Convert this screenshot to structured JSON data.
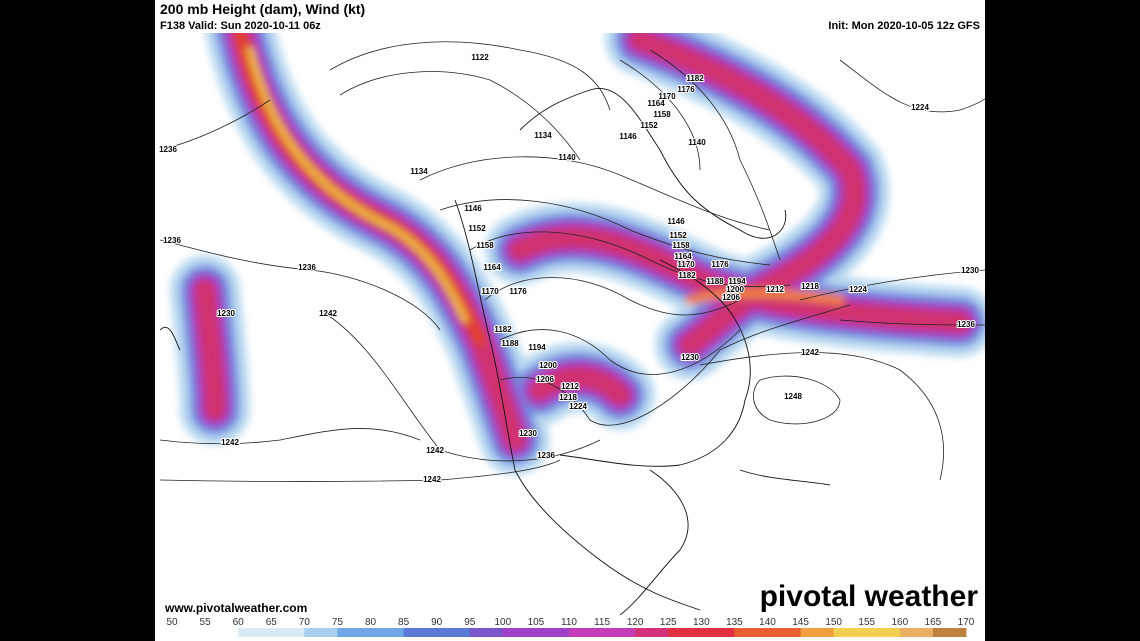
{
  "header": {
    "title": "200 mb Height (dam), Wind (kt)",
    "valid": "F138 Valid: Sun 2020-10-11 06z",
    "init": "Init: Mon 2020-10-05 12z GFS"
  },
  "contour_labels": [
    1122,
    1236,
    1236,
    1236,
    1230,
    1242,
    1242,
    1242,
    1242,
    1134,
    1140,
    1134,
    1146,
    1152,
    1158,
    1164,
    1170,
    1176,
    1182,
    1188,
    1194,
    1200,
    1206,
    1212,
    1218,
    1224,
    1230,
    1236,
    1182,
    1176,
    1170,
    1164,
    1158,
    1152,
    1146,
    1140,
    1146,
    1152,
    1158,
    1164,
    1170,
    1176,
    1182,
    1188,
    1194,
    1200,
    1206,
    1212,
    1218,
    1224,
    1230,
    1242,
    1248,
    1224,
    1230,
    1236
  ],
  "footer": {
    "website": "www.pivotalweather.com",
    "logo": "pivotal weather"
  },
  "colorbar": {
    "ticks": [
      50,
      55,
      60,
      65,
      70,
      75,
      80,
      85,
      90,
      95,
      100,
      105,
      110,
      115,
      120,
      125,
      130,
      135,
      140,
      145,
      150,
      155,
      160,
      165,
      170
    ]
  }
}
